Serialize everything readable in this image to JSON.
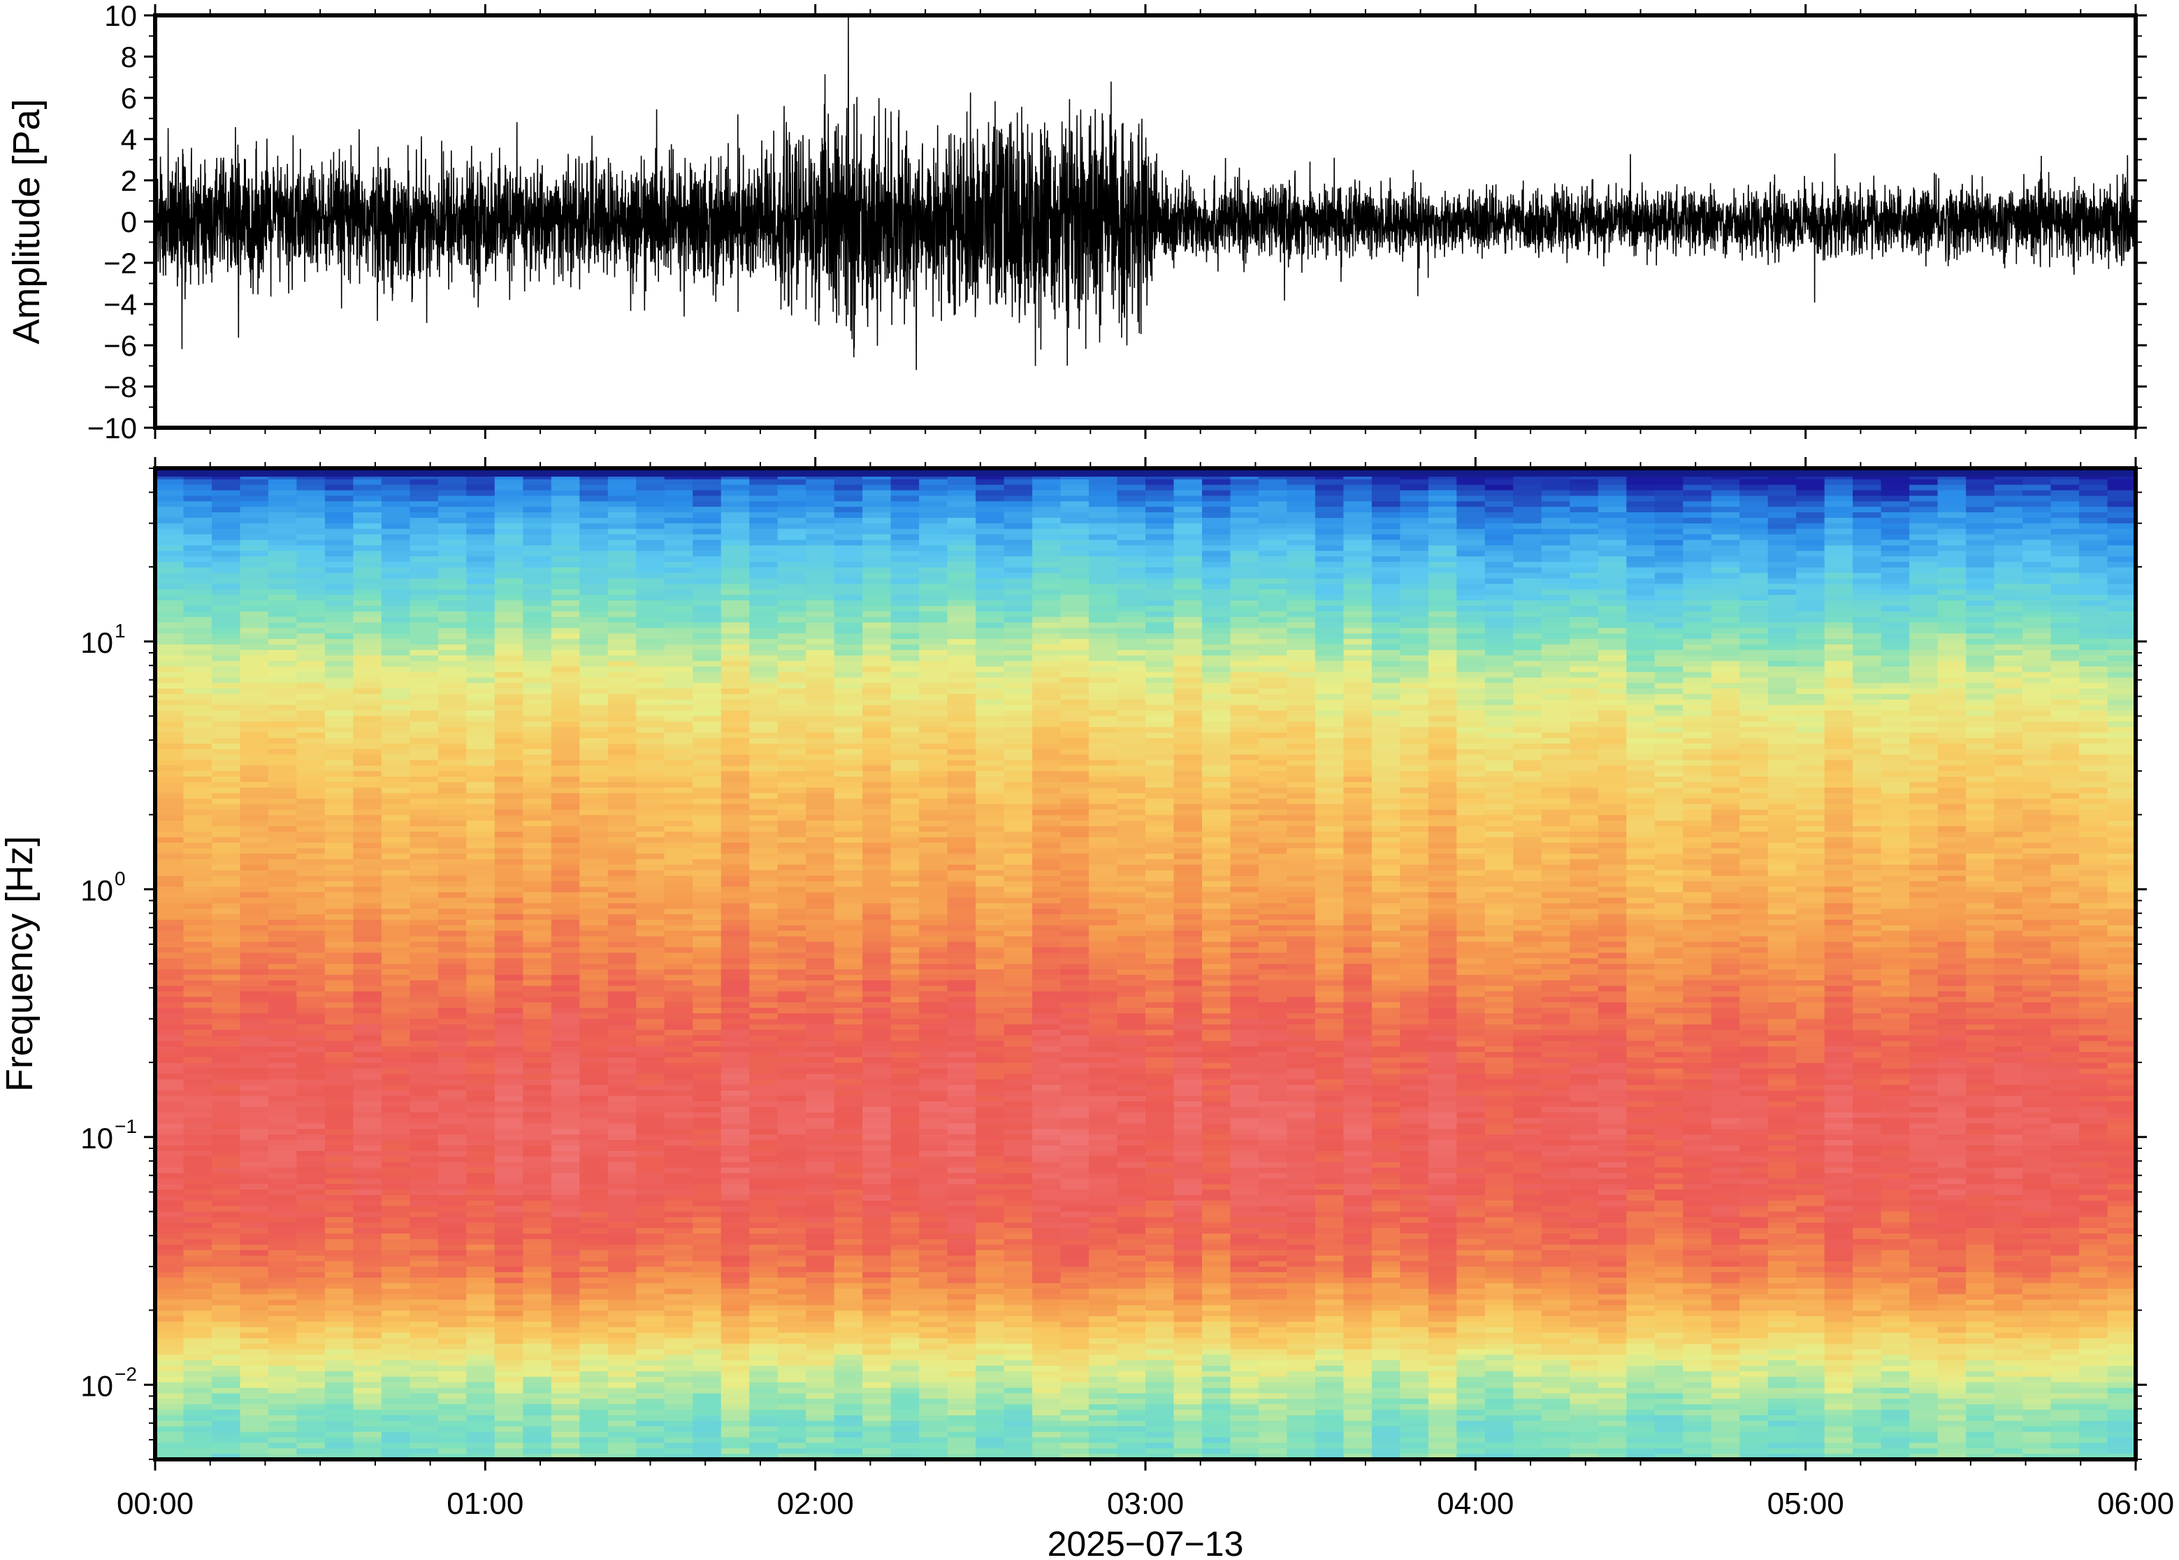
{
  "chart_data": [
    {
      "type": "line",
      "panel": "waveform",
      "ylabel": "Amplitude [Pa]",
      "ylim": [
        -10,
        10
      ],
      "yticks": [
        -10,
        -8,
        -6,
        -4,
        -2,
        0,
        2,
        4,
        6,
        8,
        10
      ],
      "ytick_labels": [
        "−10",
        "−8",
        "−6",
        "−4",
        "−2",
        "0",
        "2",
        "4",
        "6",
        "8",
        "10"
      ],
      "xlim_hours": [
        0,
        6
      ],
      "series": [
        {
          "color": "#000000",
          "envelope_x_hours": [
            0.0,
            0.25,
            0.5,
            0.75,
            1.0,
            1.25,
            1.5,
            1.75,
            2.0,
            2.1,
            2.25,
            2.4,
            2.55,
            2.7,
            2.85,
            3.0,
            3.05,
            3.25,
            3.5,
            3.75,
            4.0,
            4.25,
            4.5,
            4.75,
            5.0,
            5.25,
            5.5,
            5.75,
            6.0
          ],
          "envelope_amplitude_pa": [
            2.6,
            2.8,
            2.5,
            2.7,
            2.5,
            2.4,
            2.6,
            2.8,
            3.8,
            4.5,
            3.6,
            3.4,
            4.8,
            4.2,
            4.6,
            4.0,
            1.8,
            1.6,
            1.6,
            1.5,
            1.2,
            1.3,
            1.4,
            1.3,
            1.5,
            1.4,
            1.6,
            1.5,
            1.8
          ]
        }
      ]
    },
    {
      "type": "heatmap",
      "panel": "spectrogram",
      "xlabel": "2025−07−13",
      "ylabel": "Frequency [Hz]",
      "y_scale": "log",
      "ylim_hz": [
        0.005,
        50
      ],
      "yticks_hz": [
        0.01,
        0.1,
        1,
        10
      ],
      "ytick_labels": [
        {
          "base": "10",
          "exp": "−2"
        },
        {
          "base": "10",
          "exp": "−1"
        },
        {
          "base": "10",
          "exp": "0"
        },
        {
          "base": "10",
          "exp": "1"
        }
      ],
      "xlim_hours": [
        0,
        6
      ],
      "xticks_hours": [
        0,
        1,
        2,
        3,
        4,
        5,
        6
      ],
      "xtick_labels": [
        "00:00",
        "01:00",
        "02:00",
        "03:00",
        "04:00",
        "05:00",
        "06:00"
      ],
      "colormap": [
        "#1a1aa0",
        "#2a8ce8",
        "#5ac8f0",
        "#7be0c0",
        "#e8ee88",
        "#f9c860",
        "#f5964e",
        "#ec5a54",
        "#f07878"
      ],
      "typical_level_by_frequency": {
        "frequency_hz": [
          50,
          30,
          15,
          8,
          4,
          2,
          1,
          0.5,
          0.25,
          0.12,
          0.06,
          0.03,
          0.02,
          0.012,
          0.007
        ],
        "relative_level": [
          0.05,
          0.2,
          0.35,
          0.5,
          0.6,
          0.68,
          0.72,
          0.8,
          0.88,
          0.93,
          0.9,
          0.82,
          0.7,
          0.5,
          0.38
        ]
      }
    }
  ]
}
